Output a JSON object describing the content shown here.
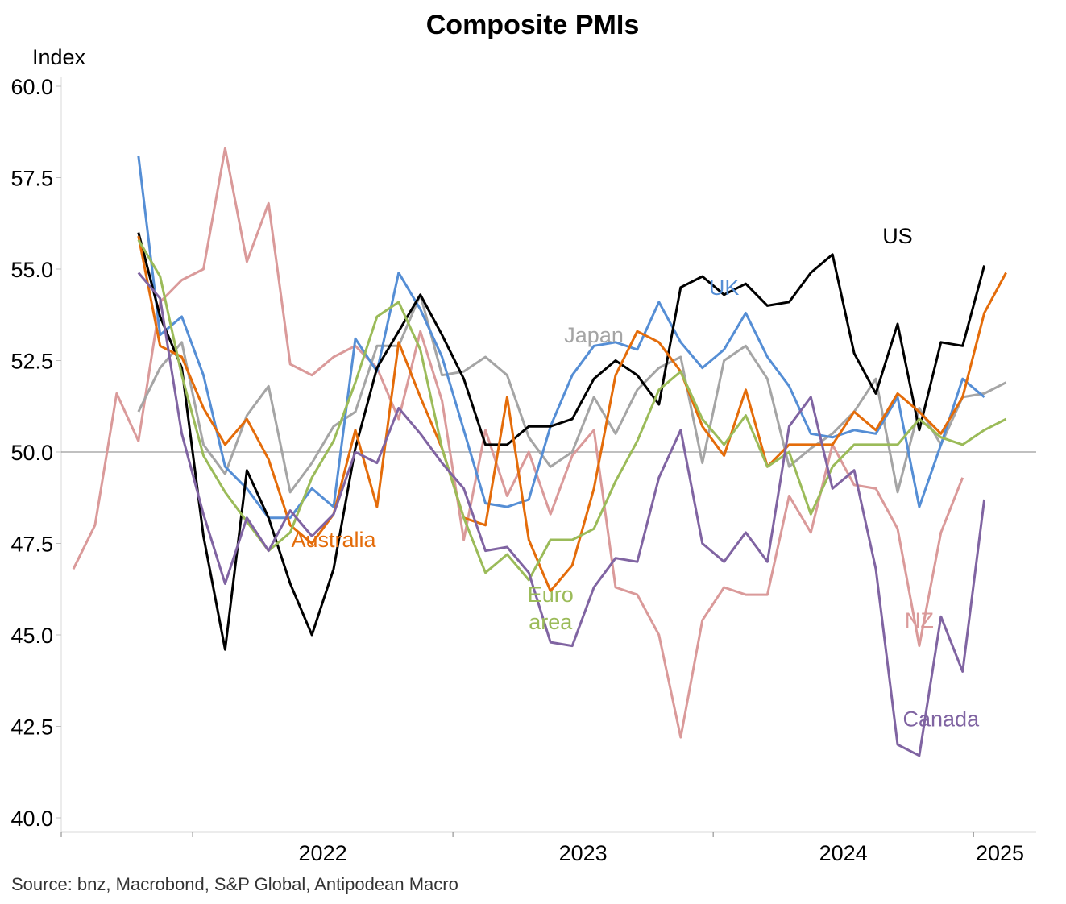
{
  "chart_data": {
    "type": "line",
    "title": "Composite PMIs",
    "ylabel": "Index",
    "ylim": [
      40,
      60
    ],
    "yticks": [
      "60.0",
      "57.5",
      "55.0",
      "52.5",
      "50.0",
      "47.5",
      "45.0",
      "42.5",
      "40.0"
    ],
    "ytick_values": [
      60,
      57.5,
      55,
      52.5,
      50,
      47.5,
      45,
      42.5,
      40
    ],
    "xlabels": [
      "2022",
      "2023",
      "2024",
      "2025"
    ],
    "reference_line": 50,
    "source": "Source: bnz, Macrobond, S&P Global, Antipodean Macro",
    "x_dates": [
      "2021-07",
      "2021-08",
      "2021-09",
      "2021-10",
      "2021-11",
      "2021-12",
      "2022-01",
      "2022-02",
      "2022-03",
      "2022-04",
      "2022-05",
      "2022-06",
      "2022-07",
      "2022-08",
      "2022-09",
      "2022-10",
      "2022-11",
      "2022-12",
      "2023-01",
      "2023-02",
      "2023-03",
      "2023-04",
      "2023-05",
      "2023-06",
      "2023-07",
      "2023-08",
      "2023-09",
      "2023-10",
      "2023-11",
      "2023-12",
      "2024-01",
      "2024-02",
      "2024-03",
      "2024-04",
      "2024-05",
      "2024-06",
      "2024-07",
      "2024-08",
      "2024-09",
      "2024-10",
      "2024-11",
      "2024-12",
      "2025-01",
      "2025-02",
      "2025-03",
      "2025-04"
    ],
    "series": [
      {
        "name": "NZ",
        "color": "#DA9A9A",
        "label_x": "2024-10",
        "label_y": 45.2,
        "values": [
          46.8,
          48.0,
          51.6,
          50.3,
          54.1,
          54.7,
          55.0,
          58.3,
          55.2,
          56.8,
          52.4,
          52.1,
          52.6,
          52.9,
          52.3,
          50.9,
          53.3,
          51.4,
          47.6,
          50.6,
          48.8,
          50.0,
          48.3,
          49.9,
          50.6,
          46.3,
          46.1,
          45.0,
          42.2,
          45.4,
          46.3,
          46.1,
          46.1,
          48.8,
          47.8,
          50.2,
          49.1,
          49.0,
          47.9,
          44.7,
          47.8,
          49.3,
          null,
          null,
          null,
          null
        ]
      },
      {
        "name": "Japan",
        "color": "#A5A5A5",
        "label_x": "2023-07",
        "label_y": 53.0,
        "values": [
          null,
          null,
          null,
          51.1,
          52.3,
          53.0,
          50.2,
          49.4,
          51.0,
          51.8,
          48.9,
          49.7,
          50.7,
          51.1,
          52.9,
          52.9,
          54.3,
          52.1,
          52.2,
          52.6,
          52.1,
          50.4,
          49.6,
          50.0,
          51.5,
          50.5,
          51.7,
          52.3,
          52.6,
          49.7,
          52.5,
          52.9,
          52.0,
          49.6,
          50.1,
          50.5,
          51.1,
          52.0,
          48.9,
          51.2,
          50.2,
          51.5,
          51.6,
          51.9,
          null,
          null
        ]
      },
      {
        "name": "UK",
        "color": "#558ED5",
        "label_x": "2024-01",
        "label_y": 54.3,
        "values": [
          null,
          null,
          null,
          58.1,
          53.2,
          53.7,
          52.1,
          49.6,
          49.0,
          48.2,
          48.2,
          49.0,
          48.5,
          53.1,
          52.2,
          54.9,
          53.9,
          52.6,
          50.6,
          48.6,
          48.5,
          48.7,
          50.7,
          52.1,
          52.9,
          53.0,
          52.8,
          54.1,
          53.0,
          52.3,
          52.8,
          53.8,
          52.6,
          51.8,
          50.5,
          50.4,
          50.6,
          50.5,
          51.5,
          48.5,
          50.2,
          52.0,
          51.5,
          null,
          null,
          null
        ]
      },
      {
        "name": "US",
        "color": "#000000",
        "label_x": "2024-09",
        "label_y": 55.7,
        "values": [
          null,
          null,
          null,
          56.0,
          53.7,
          52.3,
          47.7,
          44.6,
          49.5,
          48.2,
          46.4,
          45.0,
          46.8,
          50.1,
          52.3,
          53.3,
          54.3,
          53.2,
          52.0,
          50.2,
          50.2,
          50.7,
          50.7,
          50.9,
          52.0,
          52.5,
          52.1,
          51.3,
          54.5,
          54.8,
          54.3,
          54.6,
          54.0,
          54.1,
          54.9,
          55.4,
          52.7,
          51.6,
          53.5,
          50.6,
          53.0,
          52.9,
          55.1,
          null,
          null,
          null
        ]
      },
      {
        "name": "Australia",
        "color": "#E46C0A",
        "label_x": "2022-07",
        "label_y": 47.4,
        "values": [
          null,
          null,
          null,
          55.9,
          52.9,
          52.6,
          51.2,
          50.2,
          50.9,
          49.8,
          48.0,
          47.5,
          48.3,
          50.6,
          48.5,
          53.0,
          51.5,
          50.1,
          48.2,
          48.0,
          51.5,
          47.6,
          46.2,
          46.9,
          49.0,
          52.1,
          53.3,
          53.0,
          52.2,
          50.7,
          49.9,
          51.7,
          49.6,
          50.2,
          50.2,
          50.2,
          51.1,
          50.6,
          51.6,
          51.1,
          50.5,
          51.5,
          53.8,
          54.9,
          null,
          null
        ]
      },
      {
        "name": "Euro area",
        "color": "#9BBB59",
        "label_x": "2023-05",
        "label_y": 45.9,
        "label_line2": "area",
        "values": [
          null,
          null,
          null,
          55.8,
          54.8,
          52.1,
          49.9,
          48.9,
          48.1,
          47.3,
          47.8,
          49.3,
          50.3,
          51.9,
          53.7,
          54.1,
          52.8,
          50.1,
          48.2,
          46.7,
          47.2,
          46.5,
          47.6,
          47.6,
          47.9,
          49.2,
          50.3,
          51.7,
          52.2,
          50.9,
          50.2,
          51.0,
          49.6,
          50.0,
          48.3,
          49.6,
          50.2,
          50.2,
          50.2,
          50.9,
          50.4,
          50.2,
          50.6,
          50.9,
          null,
          null
        ]
      },
      {
        "name": "Canada",
        "color": "#8064A2",
        "label_x": "2024-11",
        "label_y": 42.5,
        "values": [
          null,
          null,
          null,
          54.9,
          54.2,
          50.5,
          48.3,
          46.4,
          48.2,
          47.3,
          48.4,
          47.7,
          48.3,
          50.0,
          49.7,
          51.2,
          50.5,
          49.7,
          49.0,
          47.3,
          47.4,
          46.7,
          44.8,
          44.7,
          46.3,
          47.1,
          47.0,
          49.3,
          50.6,
          47.5,
          47.0,
          47.8,
          47.0,
          50.7,
          51.5,
          49.0,
          49.5,
          46.8,
          42.0,
          41.7,
          45.5,
          44.0,
          48.7,
          null,
          null,
          null
        ]
      }
    ]
  }
}
